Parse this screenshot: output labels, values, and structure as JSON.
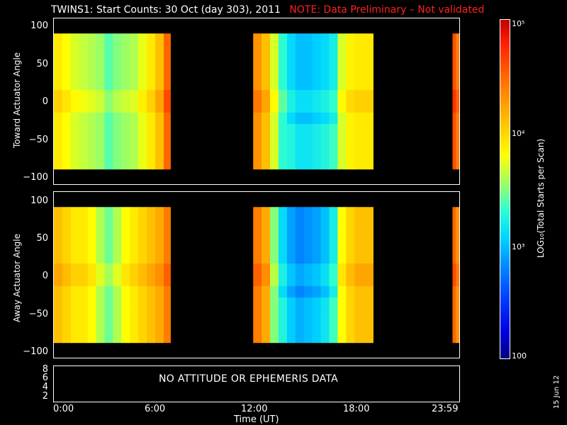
{
  "header": {
    "title": "TWINS1: Start Counts: 30 Oct (day 303), 2011",
    "note": "NOTE: Data Preliminary – Not validated"
  },
  "panels": {
    "toward": {
      "ylabel": "Toward Actuator Angle",
      "yticks": [
        "100",
        "50",
        "0",
        "−50",
        "−100"
      ]
    },
    "away": {
      "ylabel": "Away Actuator Angle",
      "yticks": [
        "100",
        "50",
        "0",
        "−50",
        "−100"
      ]
    },
    "ephem": {
      "yticks": [
        "8",
        "6",
        "4",
        "2"
      ],
      "message": "NO ATTITUDE OR EPHEMERIS DATA"
    }
  },
  "xaxis": {
    "ticks": [
      "0:00",
      "6:00",
      "12:00",
      "18:00",
      "23:59"
    ],
    "label": "Time (UT)"
  },
  "colorbar": {
    "label": "LOG₁₀(Total Starts per Scan)",
    "top": "10⁵",
    "mid": "10⁴",
    "low": "10³",
    "bottom": "100"
  },
  "footer": {
    "date": "15 Jun 12"
  },
  "chart_data": [
    {
      "type": "heatmap",
      "title": "TWINS1: Start Counts: 30 Oct (day 303), 2011",
      "ylabel": "Toward Actuator Angle",
      "xlabel": "Time (UT)",
      "xlim": [
        0,
        24
      ],
      "ylim": [
        -110,
        110
      ],
      "color_scale": "log",
      "color_range": [
        100,
        100000
      ],
      "data_segments_hours": [
        [
          0,
          6.9
        ],
        [
          11.8,
          18.9
        ],
        [
          23.6,
          24
        ]
      ],
      "angle_range": [
        -90,
        90
      ],
      "columns": [
        {
          "x": 0.0,
          "v": 3.9
        },
        {
          "x": 0.5,
          "v": 3.8
        },
        {
          "x": 1.0,
          "v": 3.7
        },
        {
          "x": 1.5,
          "v": 3.65
        },
        {
          "x": 2.0,
          "v": 3.6
        },
        {
          "x": 2.5,
          "v": 3.55
        },
        {
          "x": 3.0,
          "v": 3.4
        },
        {
          "x": 3.5,
          "v": 3.5
        },
        {
          "x": 4.0,
          "v": 3.55
        },
        {
          "x": 4.5,
          "v": 3.6
        },
        {
          "x": 5.0,
          "v": 3.75
        },
        {
          "x": 5.5,
          "v": 3.9
        },
        {
          "x": 6.0,
          "v": 4.1
        },
        {
          "x": 6.5,
          "v": 4.5
        },
        {
          "x": 11.8,
          "v": 4.3
        },
        {
          "x": 12.3,
          "v": 4.1
        },
        {
          "x": 12.8,
          "v": 3.7
        },
        {
          "x": 13.3,
          "v": 3.3
        },
        {
          "x": 13.8,
          "v": 3.1
        },
        {
          "x": 14.3,
          "v": 3.0
        },
        {
          "x": 14.8,
          "v": 3.0
        },
        {
          "x": 15.3,
          "v": 3.05
        },
        {
          "x": 15.8,
          "v": 3.1
        },
        {
          "x": 16.3,
          "v": 3.2
        },
        {
          "x": 16.8,
          "v": 3.7
        },
        {
          "x": 17.3,
          "v": 3.85
        },
        {
          "x": 17.8,
          "v": 3.9
        },
        {
          "x": 18.3,
          "v": 3.9
        },
        {
          "x": 23.6,
          "v": 4.6
        },
        {
          "x": 23.8,
          "v": 4.4
        }
      ]
    },
    {
      "type": "heatmap",
      "ylabel": "Away Actuator Angle",
      "xlabel": "Time (UT)",
      "xlim": [
        0,
        24
      ],
      "ylim": [
        -110,
        110
      ],
      "color_scale": "log",
      "color_range": [
        100,
        100000
      ],
      "data_segments_hours": [
        [
          0,
          6.9
        ],
        [
          11.8,
          18.9
        ],
        [
          23.6,
          24
        ]
      ],
      "angle_range": [
        -90,
        90
      ],
      "columns": [
        {
          "x": 0.0,
          "v": 4.1
        },
        {
          "x": 0.5,
          "v": 4.0
        },
        {
          "x": 1.0,
          "v": 3.9
        },
        {
          "x": 1.5,
          "v": 3.9
        },
        {
          "x": 2.0,
          "v": 3.8
        },
        {
          "x": 2.5,
          "v": 3.6
        },
        {
          "x": 3.0,
          "v": 3.45
        },
        {
          "x": 3.5,
          "v": 3.6
        },
        {
          "x": 4.0,
          "v": 3.8
        },
        {
          "x": 4.5,
          "v": 3.9
        },
        {
          "x": 5.0,
          "v": 4.0
        },
        {
          "x": 5.5,
          "v": 4.1
        },
        {
          "x": 6.0,
          "v": 4.2
        },
        {
          "x": 6.5,
          "v": 4.4
        },
        {
          "x": 11.8,
          "v": 4.4
        },
        {
          "x": 12.3,
          "v": 4.2
        },
        {
          "x": 12.8,
          "v": 3.5
        },
        {
          "x": 13.3,
          "v": 3.1
        },
        {
          "x": 13.8,
          "v": 2.9
        },
        {
          "x": 14.3,
          "v": 2.8
        },
        {
          "x": 14.8,
          "v": 2.85
        },
        {
          "x": 15.3,
          "v": 2.9
        },
        {
          "x": 15.8,
          "v": 3.0
        },
        {
          "x": 16.3,
          "v": 3.2
        },
        {
          "x": 16.8,
          "v": 3.8
        },
        {
          "x": 17.3,
          "v": 4.0
        },
        {
          "x": 17.8,
          "v": 4.1
        },
        {
          "x": 18.3,
          "v": 4.1
        },
        {
          "x": 23.6,
          "v": 4.5
        },
        {
          "x": 23.8,
          "v": 4.3
        }
      ]
    }
  ],
  "colors": {
    "background": "#000000",
    "note": "#ff2020",
    "axes": "#ffffff"
  }
}
